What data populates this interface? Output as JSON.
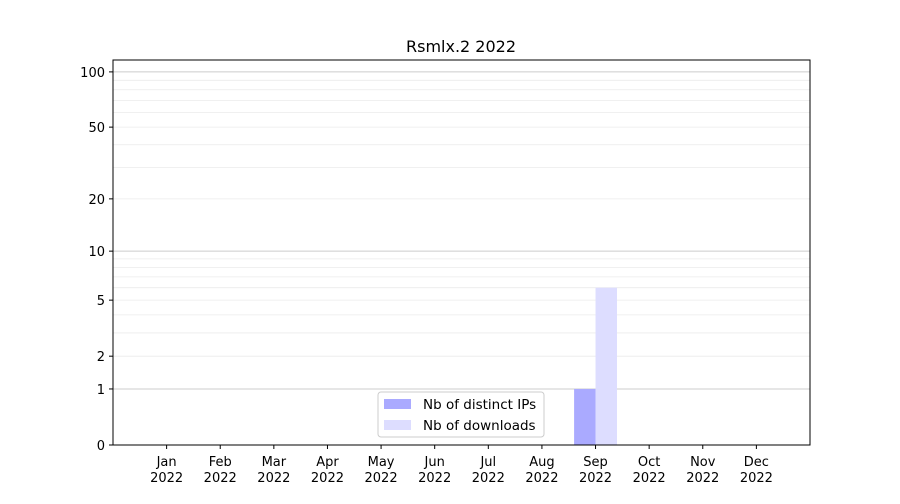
{
  "chart_data": {
    "type": "bar",
    "title": "Rsmlx.2 2022",
    "xlabel": "",
    "ylabel": "",
    "y_scale": "symlog (log10(1+y))",
    "ylim": [
      0,
      116
    ],
    "yticks": [
      0,
      1,
      2,
      5,
      10,
      20,
      50,
      100
    ],
    "ytick_labels": [
      "0",
      "1",
      "2",
      "5",
      "10",
      "20",
      "50",
      "100"
    ],
    "categories": [
      "Jan\n2022",
      "Feb\n2022",
      "Mar\n2022",
      "Apr\n2022",
      "May\n2022",
      "Jun\n2022",
      "Jul\n2022",
      "Aug\n2022",
      "Sep\n2022",
      "Oct\n2022",
      "Nov\n2022",
      "Dec\n2022"
    ],
    "category_months": [
      "Jan",
      "Feb",
      "Mar",
      "Apr",
      "May",
      "Jun",
      "Jul",
      "Aug",
      "Sep",
      "Oct",
      "Nov",
      "Dec"
    ],
    "category_year": "2022",
    "series": [
      {
        "name": "Nb of distinct IPs",
        "color": "#aaaaff",
        "values": [
          0,
          0,
          0,
          0,
          0,
          0,
          0,
          0,
          1,
          0,
          0,
          0
        ]
      },
      {
        "name": "Nb of downloads",
        "color": "#ddddff",
        "values": [
          0,
          0,
          0,
          0,
          0,
          0,
          0,
          0,
          6,
          0,
          0,
          0
        ]
      }
    ],
    "grid": "horizontal, major and minor",
    "legend_placement": "lower center"
  }
}
